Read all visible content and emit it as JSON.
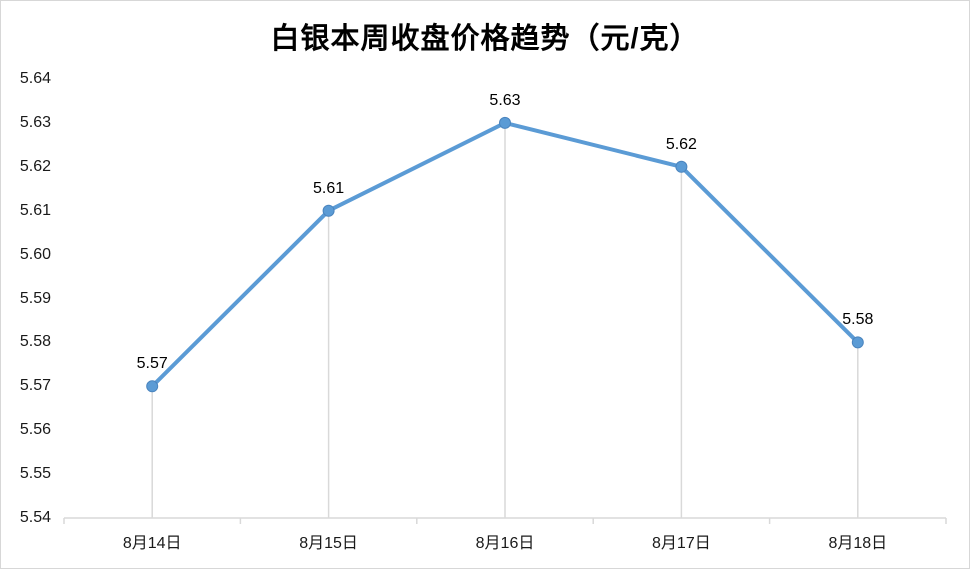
{
  "title": "白银本周收盘价格趋势（元/克）",
  "colors": {
    "line": "#5b9bd5",
    "marker_fill": "#5b9bd5",
    "marker_stroke": "#4a84be",
    "axis": "#d9d9d9",
    "drop_line": "#d9d9d9",
    "text": "#1a1a1a",
    "frame_border": "#d7d7d7"
  },
  "chart_data": {
    "type": "line",
    "title": "白银本周收盘价格趋势（元/克）",
    "categories": [
      "8月14日",
      "8月15日",
      "8月16日",
      "8月17日",
      "8月18日"
    ],
    "values": [
      5.57,
      5.61,
      5.63,
      5.62,
      5.58
    ],
    "data_labels": [
      "5.57",
      "5.61",
      "5.63",
      "5.62",
      "5.58"
    ],
    "xlabel": "",
    "ylabel": "",
    "ylim": [
      5.54,
      5.64
    ],
    "ytick_step": 0.01,
    "ytick_labels": [
      "5.64",
      "5.63",
      "5.62",
      "5.61",
      "5.60",
      "5.59",
      "5.58",
      "5.57",
      "5.56",
      "5.55",
      "5.54"
    ],
    "grid": false,
    "legend": "none",
    "marker": "circle",
    "drop_lines": true
  }
}
